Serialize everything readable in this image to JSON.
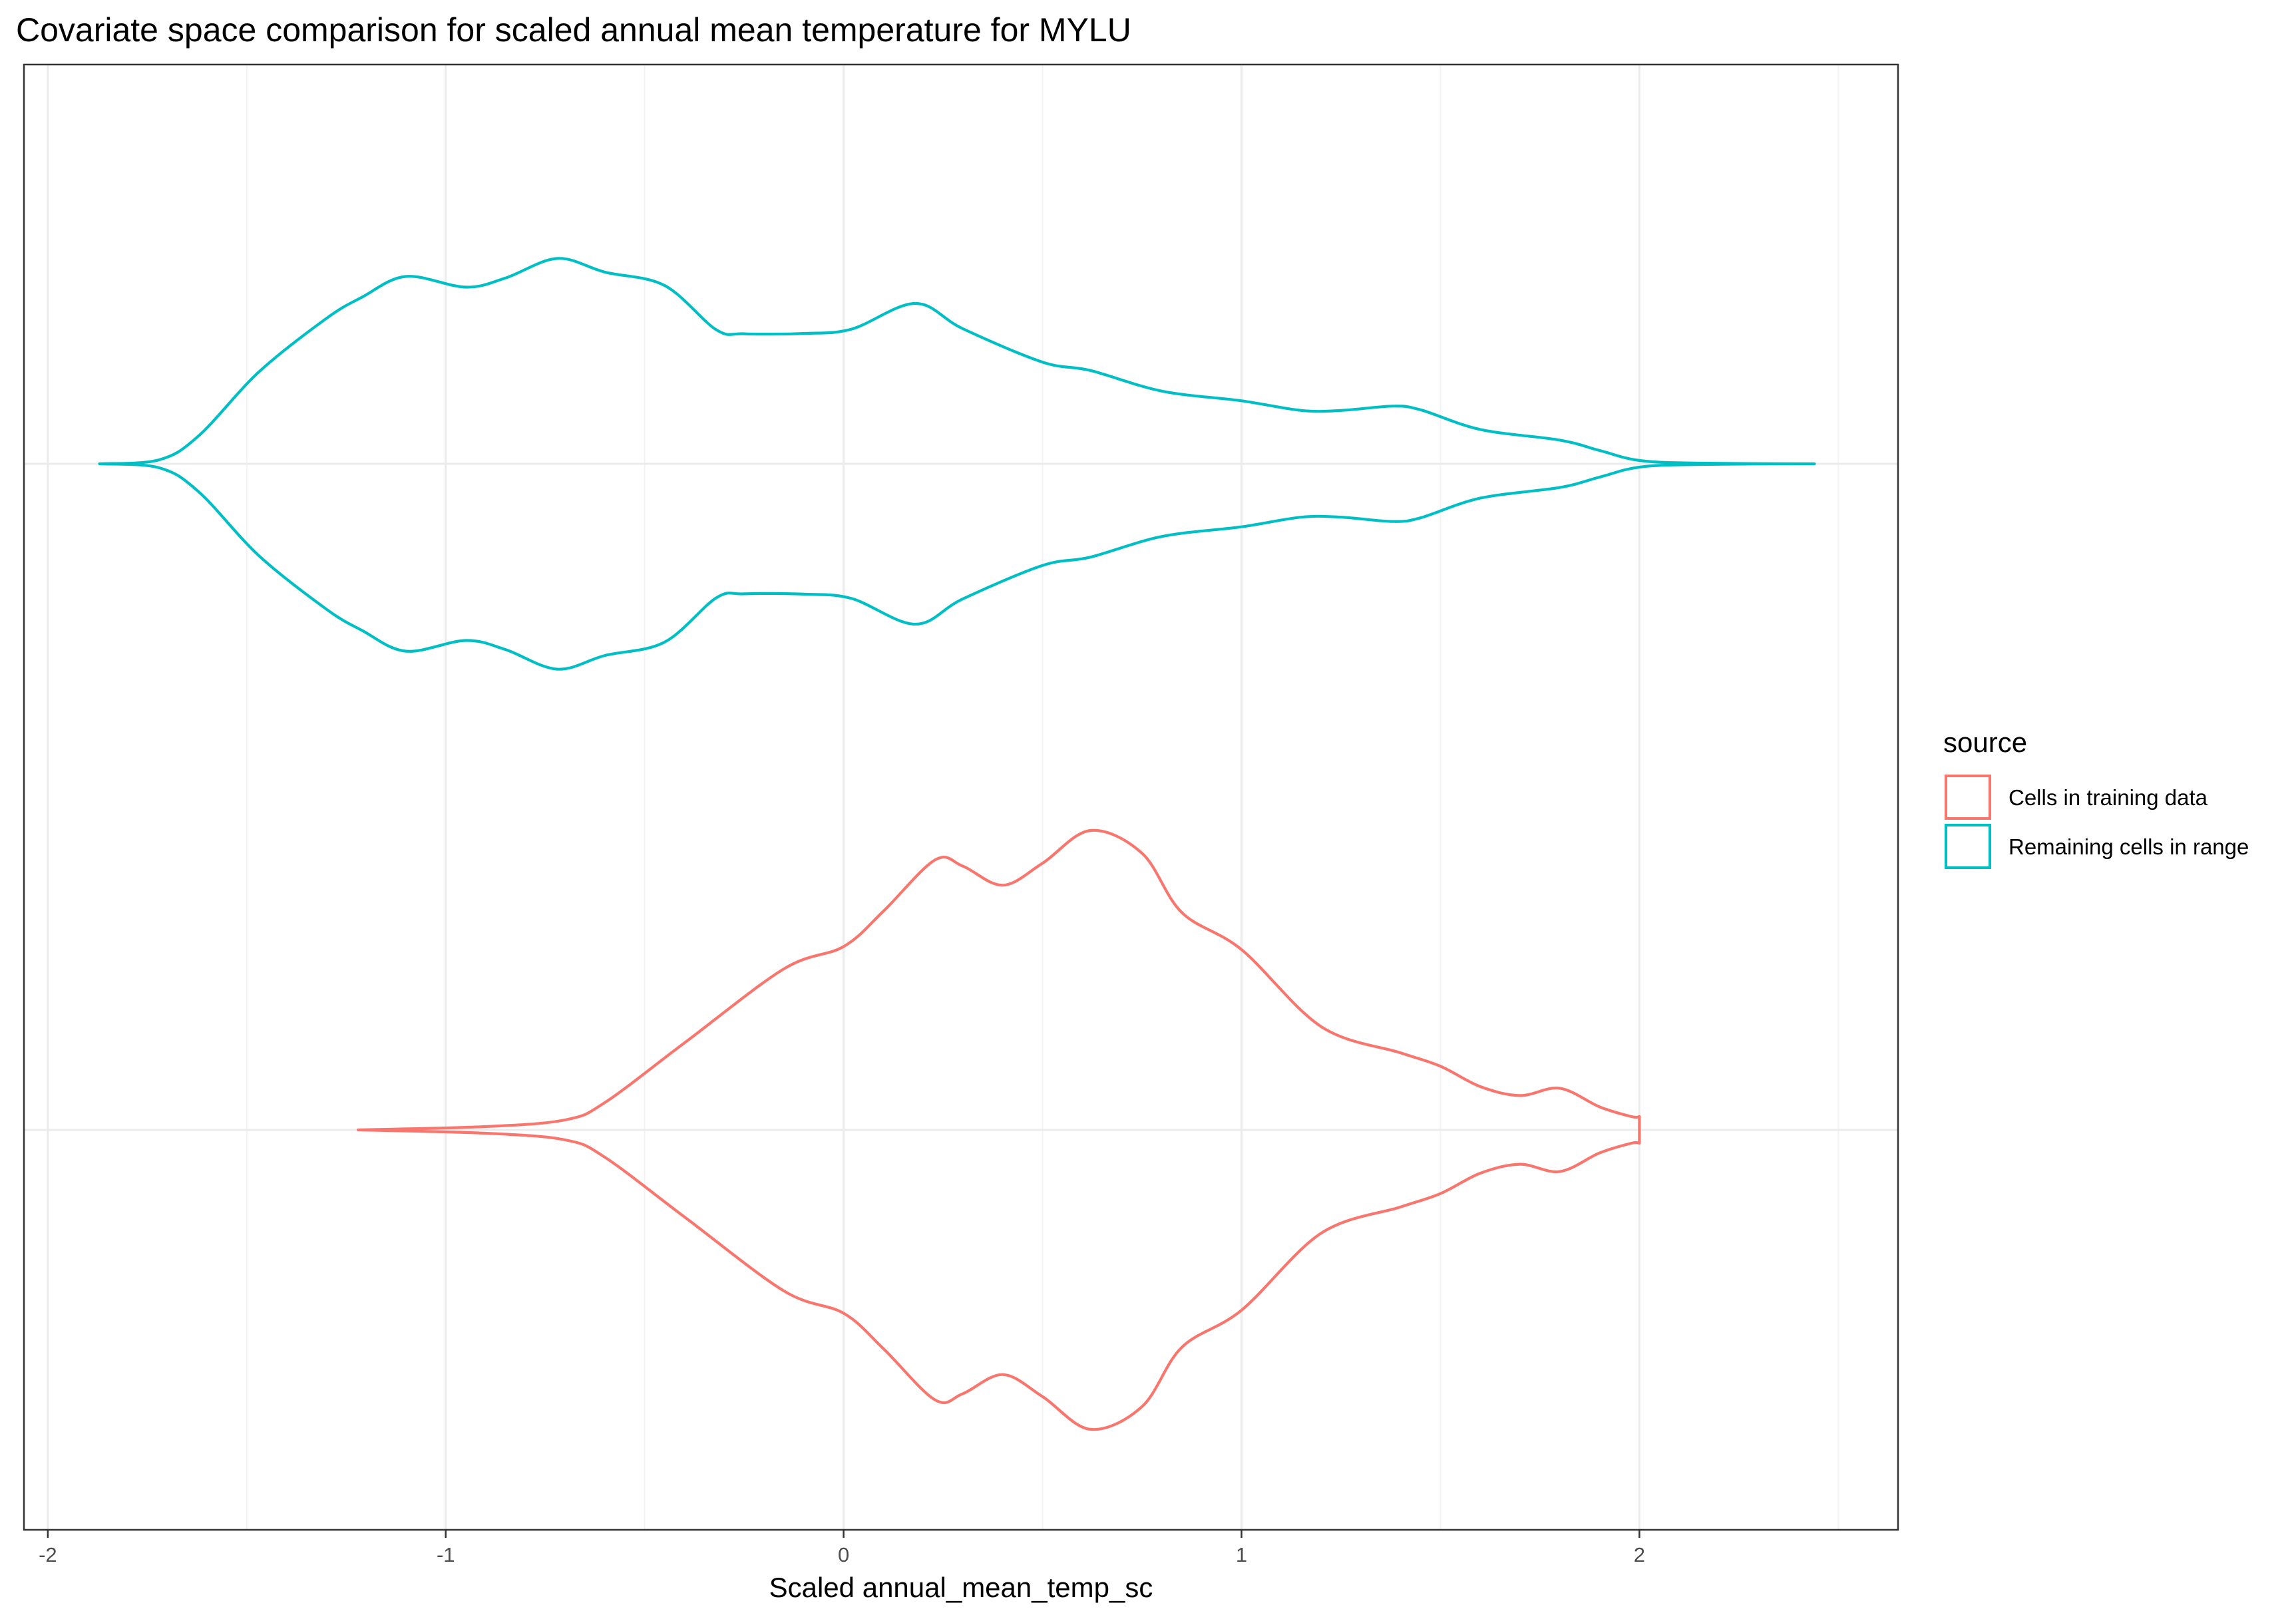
{
  "chart_data": {
    "type": "violin",
    "orientation": "horizontal",
    "title": "Covariate space comparison for scaled annual mean temperature for MYLU",
    "xlabel": "Scaled annual_mean_temp_sc",
    "ylabel": "",
    "xlim": [
      -2.06,
      2.65
    ],
    "x_ticks": [
      {
        "value": -2,
        "label": "-2"
      },
      {
        "value": -1,
        "label": "-1"
      },
      {
        "value": 0,
        "label": "0"
      },
      {
        "value": 1,
        "label": "1"
      },
      {
        "value": 2,
        "label": "2"
      }
    ],
    "grid": true,
    "legend": {
      "title": "source",
      "position": "right",
      "entries": [
        {
          "label": "Cells in training data",
          "color": "#F8766D"
        },
        {
          "label": "Remaining cells in range",
          "color": "#00BFC4"
        }
      ]
    },
    "series": [
      {
        "name": "Remaining cells in range",
        "color": "#00BFC4",
        "row": 1,
        "profile": [
          [
            -1.87,
            0.0
          ],
          [
            -1.72,
            0.012
          ],
          [
            -1.62,
            0.085
          ],
          [
            -1.47,
            0.275
          ],
          [
            -1.3,
            0.436
          ],
          [
            -1.21,
            0.5
          ],
          [
            -1.1,
            0.562
          ],
          [
            -0.95,
            0.53
          ],
          [
            -0.85,
            0.557
          ],
          [
            -0.72,
            0.616
          ],
          [
            -0.6,
            0.575
          ],
          [
            -0.45,
            0.535
          ],
          [
            -0.32,
            0.402
          ],
          [
            -0.25,
            0.39
          ],
          [
            -0.1,
            0.391
          ],
          [
            0.02,
            0.404
          ],
          [
            0.18,
            0.481
          ],
          [
            0.3,
            0.405
          ],
          [
            0.5,
            0.305
          ],
          [
            0.62,
            0.28
          ],
          [
            0.8,
            0.218
          ],
          [
            1.0,
            0.189
          ],
          [
            1.15,
            0.16
          ],
          [
            1.25,
            0.16
          ],
          [
            1.38,
            0.173
          ],
          [
            1.45,
            0.162
          ],
          [
            1.6,
            0.103
          ],
          [
            1.8,
            0.071
          ],
          [
            1.9,
            0.04
          ],
          [
            2.0,
            0.01
          ],
          [
            2.15,
            0.002
          ],
          [
            2.44,
            0.0
          ]
        ]
      },
      {
        "name": "Cells in training data",
        "color": "#F8766D",
        "row": 0,
        "profile": [
          [
            -1.22,
            0.0
          ],
          [
            -0.9,
            0.01
          ],
          [
            -0.7,
            0.03
          ],
          [
            -0.6,
            0.082
          ],
          [
            -0.4,
            0.261
          ],
          [
            -0.15,
            0.483
          ],
          [
            0.0,
            0.55
          ],
          [
            0.1,
            0.656
          ],
          [
            0.23,
            0.81
          ],
          [
            0.3,
            0.791
          ],
          [
            0.4,
            0.734
          ],
          [
            0.5,
            0.8
          ],
          [
            0.62,
            0.898
          ],
          [
            0.75,
            0.83
          ],
          [
            0.85,
            0.652
          ],
          [
            1.0,
            0.541
          ],
          [
            1.2,
            0.31
          ],
          [
            1.4,
            0.231
          ],
          [
            1.5,
            0.191
          ],
          [
            1.6,
            0.13
          ],
          [
            1.7,
            0.103
          ],
          [
            1.8,
            0.125
          ],
          [
            1.9,
            0.069
          ],
          [
            1.98,
            0.04
          ],
          [
            2.0,
            0.04
          ]
        ]
      }
    ]
  }
}
